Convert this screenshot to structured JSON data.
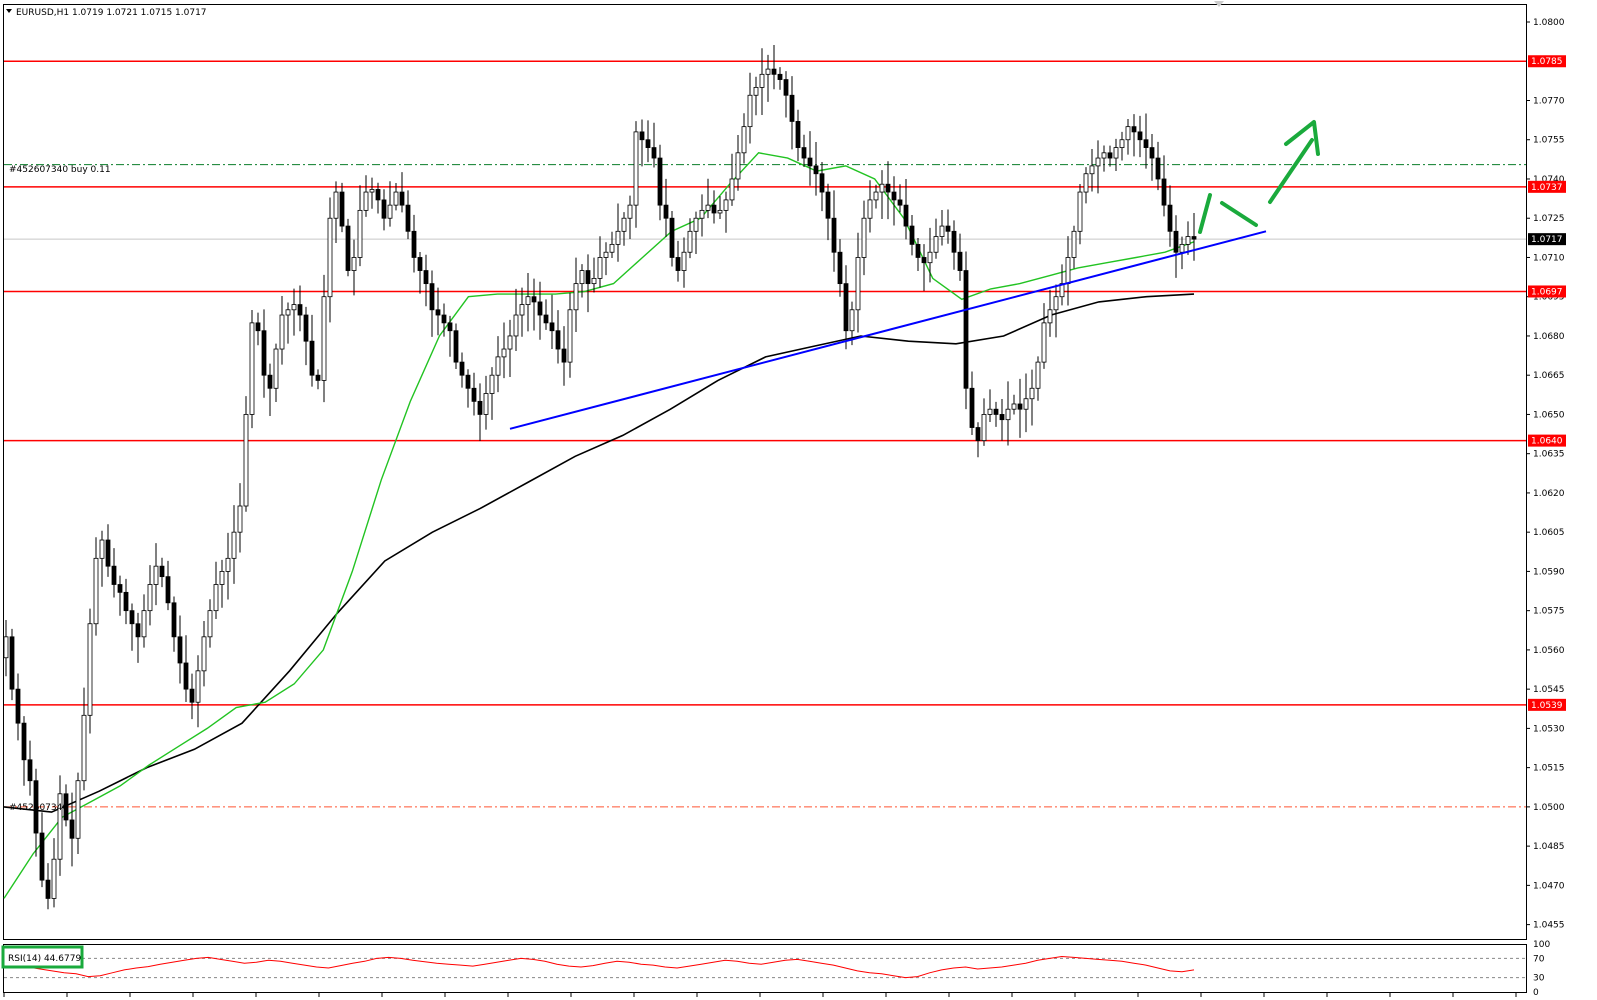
{
  "header": {
    "symbol_text": "EURUSD,H1  1.0719 1.0721 1.0715 1.0717"
  },
  "order_labels": {
    "buy_label": "#452607340 buy 0.11",
    "order_label": "#452607340"
  },
  "rsi": {
    "label": "RSI(14) 44.6779",
    "levels": [
      30,
      70
    ],
    "axis_ticks": [
      "100",
      "70",
      "30",
      "0"
    ],
    "values": [
      60,
      58,
      52,
      48,
      44,
      40,
      38,
      32,
      34,
      40,
      46,
      50,
      53,
      58,
      62,
      66,
      70,
      72,
      68,
      64,
      60,
      62,
      66,
      64,
      60,
      56,
      52,
      50,
      55,
      60,
      64,
      70,
      72,
      70,
      66,
      63,
      60,
      58,
      56,
      54,
      58,
      62,
      66,
      70,
      68,
      64,
      58,
      54,
      52,
      55,
      60,
      64,
      62,
      58,
      56,
      52,
      50,
      54,
      58,
      62,
      66,
      64,
      60,
      58,
      62,
      66,
      68,
      64,
      60,
      56,
      50,
      44,
      40,
      38,
      34,
      30,
      32,
      40,
      46,
      50,
      52,
      48,
      50,
      52,
      56,
      60,
      66,
      70,
      74,
      72,
      70,
      68,
      66,
      64,
      60,
      56,
      50,
      44,
      42,
      46
    ]
  },
  "colors": {
    "background": "#ffffff",
    "candle": "#000000",
    "level_line": "#ff0000",
    "trendline": "#0000ff",
    "ma_fast": "#22c322",
    "ma_slow": "#000000",
    "arrow": "#1aaa3c",
    "rsi_line": "#ff0000",
    "rsi_label_border": "#1aaa3c"
  },
  "chart_data": {
    "type": "candlestick",
    "symbol": "EURUSD",
    "timeframe": "H1",
    "ohlc_last": {
      "open": 1.0719,
      "high": 1.0721,
      "low": 1.0715,
      "close": 1.0717
    },
    "y_axis": {
      "ylim": [
        1.04495,
        1.08065
      ],
      "ticks": [
        "1.0800",
        "1.0785",
        "1.0770",
        "1.0755",
        "1.0740",
        "1.0737",
        "1.0725",
        "1.0717",
        "1.0710",
        "1.0697",
        "1.0695",
        "1.0680",
        "1.0665",
        "1.0650",
        "1.0640",
        "1.0635",
        "1.0620",
        "1.0605",
        "1.0590",
        "1.0575",
        "1.0560",
        "1.0545",
        "1.0539",
        "1.0530",
        "1.0515",
        "1.0500",
        "1.0485",
        "1.0470",
        "1.0455"
      ]
    },
    "horizontal_levels": [
      1.0785,
      1.0737,
      1.0697,
      1.064,
      1.0539
    ],
    "price_markers": [
      {
        "text": "1.0785",
        "value": 1.0785,
        "color": "#ff0000"
      },
      {
        "text": "1.0737",
        "value": 1.0737,
        "color": "#ff0000"
      },
      {
        "text": "1.0717",
        "value": 1.0717,
        "color": "#000000"
      },
      {
        "text": "1.0697",
        "value": 1.0697,
        "color": "#ff0000"
      },
      {
        "text": "1.0640",
        "value": 1.064,
        "color": "#ff0000"
      },
      {
        "text": "1.0539",
        "value": 1.0539,
        "color": "#ff0000"
      }
    ],
    "order_lines": [
      {
        "value": 1.07455,
        "color": "#0a7d2a"
      },
      {
        "value": 1.05,
        "color": "#ff5533"
      }
    ],
    "trendline": {
      "start": {
        "bar": 84,
        "price": 1.06445
      },
      "end": {
        "bar": 210,
        "price": 1.072
      }
    },
    "close_series": [
      1.0565,
      1.0545,
      1.0532,
      1.0518,
      1.051,
      1.049,
      1.0472,
      1.0465,
      1.048,
      1.0505,
      1.0495,
      1.0488,
      1.051,
      1.0535,
      1.057,
      1.0595,
      1.0602,
      1.0592,
      1.0585,
      1.0582,
      1.0575,
      1.057,
      1.0565,
      1.0575,
      1.0585,
      1.0592,
      1.0588,
      1.0578,
      1.0565,
      1.0555,
      1.0545,
      1.054,
      1.0552,
      1.0565,
      1.0575,
      1.0585,
      1.059,
      1.0595,
      1.0605,
      1.0615,
      1.065,
      1.0685,
      1.0682,
      1.0665,
      1.066,
      1.0675,
      1.0688,
      1.069,
      1.0692,
      1.0688,
      1.0678,
      1.0665,
      1.0663,
      1.0695,
      1.0725,
      1.0735,
      1.0722,
      1.0705,
      1.071,
      1.0728,
      1.0735,
      1.0736,
      1.0732,
      1.0725,
      1.073,
      1.0735,
      1.073,
      1.072,
      1.071,
      1.0705,
      1.07,
      1.069,
      1.0688,
      1.0685,
      1.0682,
      1.067,
      1.0665,
      1.066,
      1.0655,
      1.065,
      1.0658,
      1.0665,
      1.0672,
      1.0675,
      1.068,
      1.0688,
      1.0692,
      1.0695,
      1.0693,
      1.0688,
      1.0685,
      1.0682,
      1.0675,
      1.067,
      1.069,
      1.07,
      1.0705,
      1.07,
      1.0702,
      1.071,
      1.0712,
      1.0715,
      1.072,
      1.0725,
      1.073,
      1.0758,
      1.0755,
      1.0752,
      1.0748,
      1.073,
      1.0725,
      1.071,
      1.0705,
      1.0712,
      1.072,
      1.0725,
      1.0728,
      1.073,
      1.0727,
      1.0728,
      1.0732,
      1.074,
      1.075,
      1.076,
      1.0772,
      1.0775,
      1.078,
      1.0782,
      1.078,
      1.0778,
      1.0772,
      1.0762,
      1.0752,
      1.0748,
      1.0745,
      1.0742,
      1.0735,
      1.0725,
      1.0712,
      1.07,
      1.0682,
      1.069,
      1.071,
      1.0725,
      1.0732,
      1.0735,
      1.0738,
      1.0735,
      1.0732,
      1.073,
      1.0722,
      1.0715,
      1.071,
      1.0708,
      1.0712,
      1.0718,
      1.0722,
      1.072,
      1.0712,
      1.0705,
      1.066,
      1.0645,
      1.064,
      1.065,
      1.0652,
      1.065,
      1.0648,
      1.0652,
      1.0654,
      1.0652,
      1.0656,
      1.066,
      1.067,
      1.0685,
      1.069,
      1.0695,
      1.07,
      1.071,
      1.072,
      1.0735,
      1.0742,
      1.0745,
      1.0748,
      1.075,
      1.0748,
      1.0752,
      1.0755,
      1.076,
      1.0758,
      1.0755,
      1.0752,
      1.0748,
      1.074,
      1.073,
      1.072,
      1.0712,
      1.0715,
      1.0718,
      1.0717
    ],
    "ma_fast": [
      1.0465,
      1.0482,
      1.0496,
      1.0502,
      1.0508,
      1.0516,
      1.0523,
      1.053,
      1.0538,
      1.054,
      1.0547,
      1.056,
      1.059,
      1.0625,
      1.0655,
      1.068,
      1.0695,
      1.0696,
      1.0696,
      1.0696,
      1.0697,
      1.07,
      1.071,
      1.072,
      1.0725,
      1.0738,
      1.075,
      1.0748,
      1.0743,
      1.0745,
      1.074,
      1.0725,
      1.0702,
      1.0694,
      1.0698,
      1.07,
      1.0703,
      1.0706,
      1.0708,
      1.071,
      1.0712,
      1.0716
    ],
    "ma_slow": [
      1.05,
      1.0498,
      1.0506,
      1.0515,
      1.0522,
      1.0532,
      1.0552,
      1.0574,
      1.0594,
      1.0605,
      1.0614,
      1.0624,
      1.0634,
      1.0642,
      1.0652,
      1.0663,
      1.0672,
      1.0676,
      1.068,
      1.0678,
      1.0677,
      1.068,
      1.0688,
      1.0693,
      1.0695,
      1.0696
    ],
    "forecast_arrows": "up"
  }
}
